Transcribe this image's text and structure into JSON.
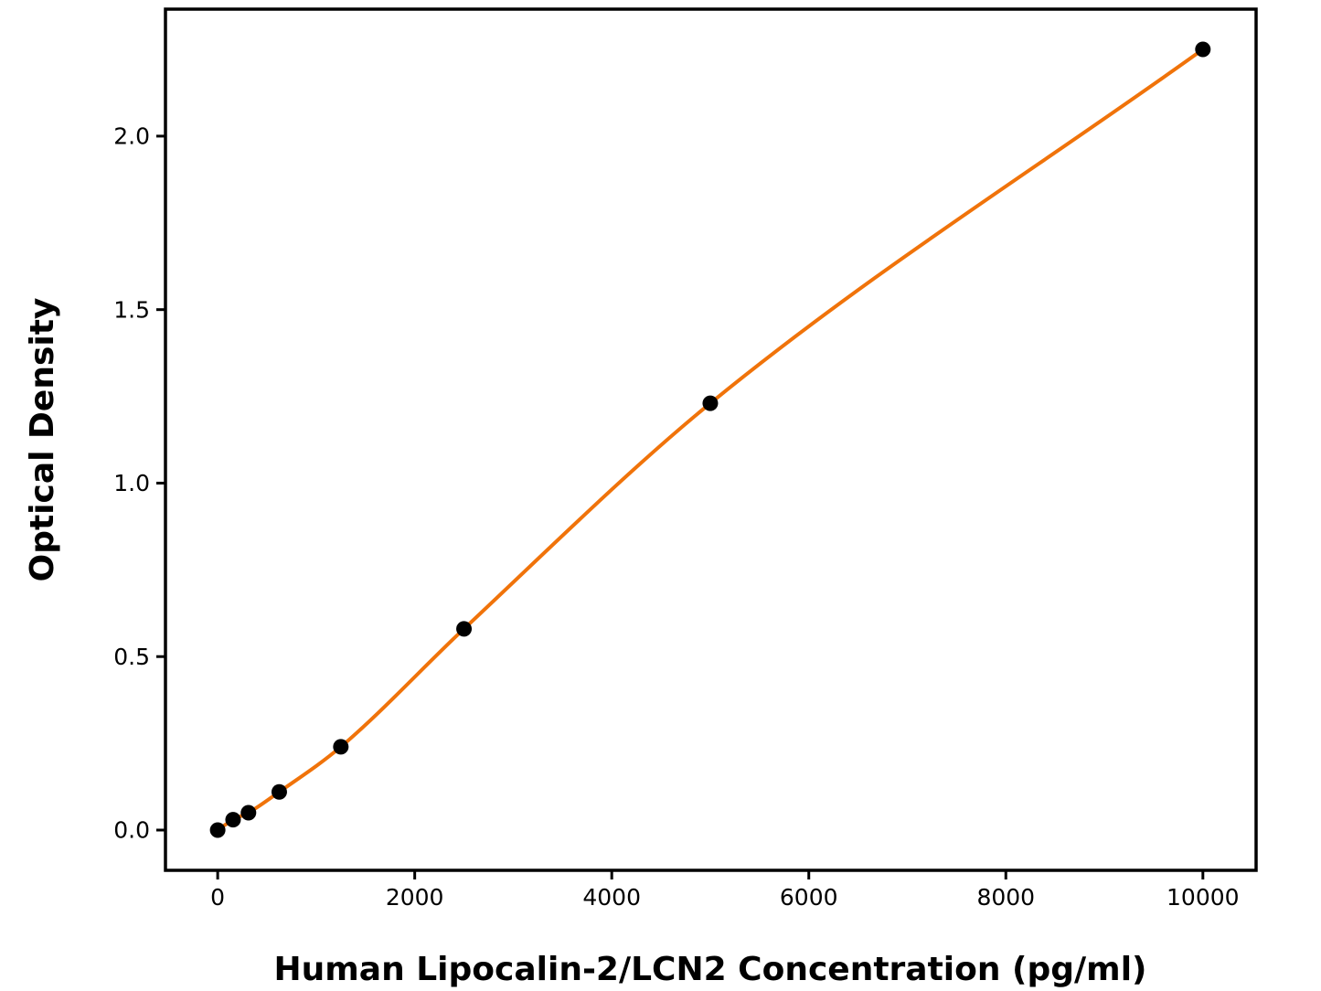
{
  "figure": {
    "background": "#ffffff"
  },
  "chart_data": {
    "type": "scatter",
    "title": "",
    "xlabel": "Human Lipocalin-2/LCN2 Concentration (pg/ml)",
    "ylabel": "Optical Density",
    "series": [
      {
        "name": "standard-curve",
        "x": [
          0,
          156.25,
          312.5,
          625,
          1250,
          2500,
          5000,
          10000
        ],
        "y": [
          0.0,
          0.03,
          0.05,
          0.11,
          0.24,
          0.58,
          1.23,
          2.25
        ],
        "line_color": "#F0730A",
        "marker_color": "#000000",
        "marker": "circle",
        "line_width": 4,
        "marker_radius": 8.5
      }
    ],
    "xlim": [
      -530,
      10540
    ],
    "ylim": [
      -0.116,
      2.366
    ],
    "xticks": [
      {
        "value": 0,
        "label": "0"
      },
      {
        "value": 2000,
        "label": "2000"
      },
      {
        "value": 4000,
        "label": "4000"
      },
      {
        "value": 6000,
        "label": "6000"
      },
      {
        "value": 8000,
        "label": "8000"
      },
      {
        "value": 10000,
        "label": "10000"
      }
    ],
    "yticks": [
      {
        "value": 0.0,
        "label": "0.0"
      },
      {
        "value": 0.5,
        "label": "0.5"
      },
      {
        "value": 1.0,
        "label": "1.0"
      },
      {
        "value": 1.5,
        "label": "1.5"
      },
      {
        "value": 2.0,
        "label": "2.0"
      }
    ],
    "grid": false,
    "legend": null,
    "axis_color": "#000000",
    "frame": "box"
  }
}
